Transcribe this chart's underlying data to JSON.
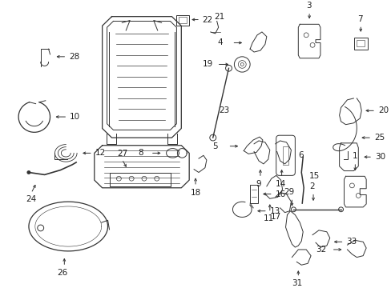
{
  "background_color": "#ffffff",
  "fig_width": 4.89,
  "fig_height": 3.6,
  "dpi": 100,
  "font_size": 7.5,
  "label_color": "#222222",
  "line_color": "#333333",
  "arrow_color": "#333333",
  "lw": 0.7
}
